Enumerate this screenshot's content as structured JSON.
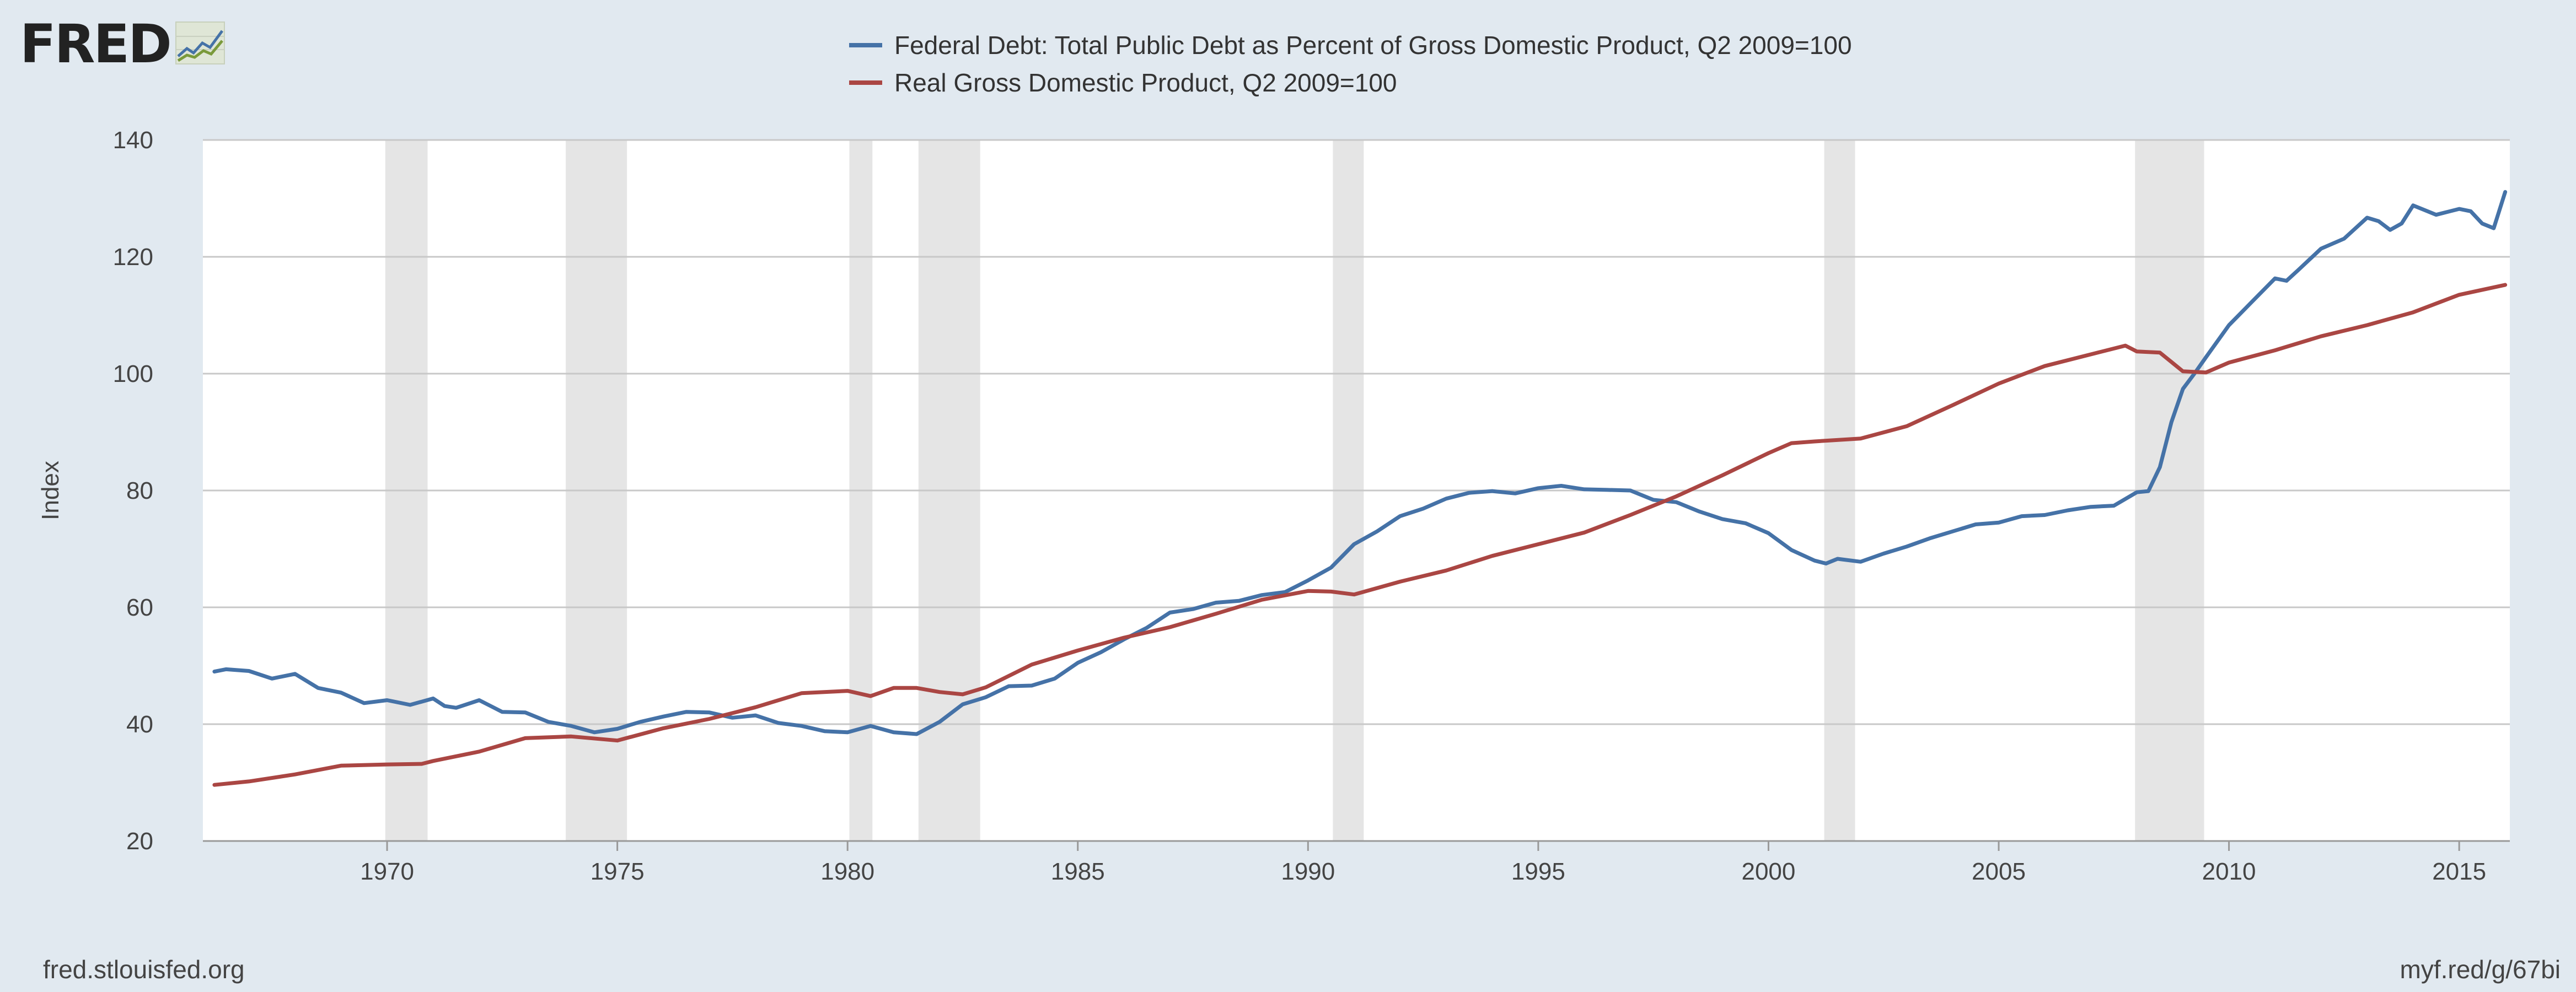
{
  "logo": {
    "text": "FRED",
    "icon": "line-chart-icon"
  },
  "legend": [
    {
      "label": "Federal Debt: Total Public Debt as Percent of Gross Domestic Product, Q2 2009=100",
      "color": "#4572a7"
    },
    {
      "label": "Real Gross Domestic Product, Q2 2009=100",
      "color": "#aa4643"
    }
  ],
  "footer": {
    "source": "fred.stlouisfed.org",
    "shortlink": "myf.red/g/67bi"
  },
  "chart_data": {
    "type": "line",
    "title": "",
    "xlabel": "",
    "ylabel": "Index",
    "xlim": [
      1966.0,
      2016.1
    ],
    "ylim": [
      20,
      140
    ],
    "yticks": [
      20,
      40,
      60,
      80,
      100,
      120,
      140
    ],
    "xticks": [
      1970,
      1975,
      1980,
      1985,
      1990,
      1995,
      2000,
      2005,
      2010,
      2015
    ],
    "grid": true,
    "legend_position": "top-center",
    "recessions": [
      [
        1969.96,
        1970.88
      ],
      [
        1973.88,
        1975.21
      ],
      [
        1980.04,
        1980.54
      ],
      [
        1981.54,
        1982.88
      ],
      [
        1990.54,
        1991.21
      ],
      [
        2001.21,
        2001.88
      ],
      [
        2007.96,
        2009.46
      ]
    ],
    "series": [
      {
        "name": "Federal Debt: Total Public Debt as Percent of Gross Domestic Product, Q2 2009=100",
        "color": "#4572a7",
        "x": [
          1966.25,
          1966.5,
          1967,
          1967.5,
          1968,
          1968.5,
          1969,
          1969.5,
          1970,
          1970.5,
          1971,
          1971.25,
          1971.5,
          1972,
          1972.5,
          1973,
          1973.5,
          1974,
          1974.5,
          1975,
          1975.5,
          1976,
          1976.5,
          1977,
          1977.5,
          1978,
          1978.5,
          1979,
          1979.5,
          1980,
          1980.5,
          1981,
          1981.5,
          1982,
          1982.5,
          1983,
          1983.5,
          1984,
          1984.5,
          1985,
          1985.5,
          1986,
          1986.5,
          1987,
          1987.5,
          1988,
          1988.5,
          1989,
          1989.5,
          1990,
          1990.5,
          1991,
          1991.5,
          1992,
          1992.5,
          1993,
          1993.5,
          1994,
          1994.5,
          1995,
          1995.5,
          1996,
          1996.5,
          1997,
          1997.5,
          1998,
          1998.5,
          1999,
          1999.5,
          2000,
          2000.5,
          2001,
          2001.25,
          2001.5,
          2002,
          2002.5,
          2003,
          2003.5,
          2004,
          2004.5,
          2005,
          2005.5,
          2006,
          2006.5,
          2007,
          2007.5,
          2008,
          2008.25,
          2008.5,
          2008.75,
          2009,
          2009.25,
          2009.5,
          2010,
          2010.5,
          2011,
          2011.25,
          2011.5,
          2012,
          2012.5,
          2013,
          2013.25,
          2013.5,
          2013.75,
          2014,
          2014.5,
          2015,
          2015.25,
          2015.5,
          2015.75,
          2016
        ],
        "values": [
          49,
          49.4,
          49.1,
          47.8,
          48.6,
          46.2,
          45.4,
          43.6,
          44.1,
          43.3,
          44.4,
          43.1,
          42.8,
          44.1,
          42.1,
          42,
          40.4,
          39.7,
          38.6,
          39.2,
          40.4,
          41.3,
          42.1,
          42,
          41.1,
          41.5,
          40.2,
          39.7,
          38.8,
          38.6,
          39.7,
          38.6,
          38.3,
          40.4,
          43.4,
          44.6,
          46.5,
          46.6,
          47.8,
          50.5,
          52.3,
          54.5,
          56.5,
          59.1,
          59.7,
          60.8,
          61.1,
          62.1,
          62.6,
          64.6,
          66.8,
          70.8,
          73,
          75.6,
          76.9,
          78.6,
          79.6,
          79.9,
          79.5,
          80.4,
          80.8,
          80.2,
          80.1,
          80,
          78.4,
          78,
          76.4,
          75.1,
          74.4,
          72.7,
          69.8,
          68,
          67.5,
          68.3,
          67.8,
          69.2,
          70.4,
          71.8,
          73,
          74.2,
          74.5,
          75.6,
          75.8,
          76.6,
          77.2,
          77.4,
          79.7,
          79.9,
          84,
          91.7,
          97.4,
          100,
          102.8,
          108.3,
          112.3,
          116.3,
          115.9,
          117.7,
          121.4,
          123.1,
          126.7,
          126.1,
          124.6,
          125.7,
          128.8,
          127.2,
          128.2,
          127.8,
          125.7,
          124.9,
          131.1
        ]
      },
      {
        "name": "Real Gross Domestic Product, Q2 2009=100",
        "color": "#aa4643",
        "x": [
          1966.25,
          1967,
          1968,
          1969,
          1970,
          1970.75,
          1971,
          1972,
          1973,
          1974,
          1975,
          1976,
          1977,
          1978,
          1979,
          1980,
          1980.5,
          1981,
          1981.5,
          1982,
          1982.5,
          1983,
          1984,
          1985,
          1986,
          1987,
          1988,
          1989,
          1990,
          1990.5,
          1991,
          1992,
          1993,
          1994,
          1995,
          1996,
          1997,
          1998,
          1999,
          2000,
          2000.5,
          2001,
          2002,
          2003,
          2004,
          2005,
          2006,
          2007,
          2007.75,
          2008,
          2008.5,
          2009,
          2009.5,
          2010,
          2011,
          2012,
          2013,
          2014,
          2015,
          2016
        ],
        "values": [
          29.6,
          30.2,
          31.4,
          32.9,
          33.1,
          33.2,
          33.7,
          35.3,
          37.6,
          37.9,
          37.2,
          39.3,
          40.9,
          42.9,
          45.3,
          45.7,
          44.8,
          46.2,
          46.2,
          45.5,
          45.1,
          46.3,
          50.2,
          52.6,
          54.8,
          56.6,
          58.9,
          61.3,
          62.8,
          62.7,
          62.2,
          64.4,
          66.3,
          68.8,
          70.8,
          72.8,
          75.8,
          79,
          82.6,
          86.4,
          88.1,
          88.4,
          88.9,
          91,
          94.6,
          98.3,
          101.3,
          103.3,
          104.8,
          103.8,
          103.6,
          100.4,
          100.2,
          101.9,
          104,
          106.4,
          108.3,
          110.5,
          113.5,
          115.2
        ]
      }
    ]
  }
}
